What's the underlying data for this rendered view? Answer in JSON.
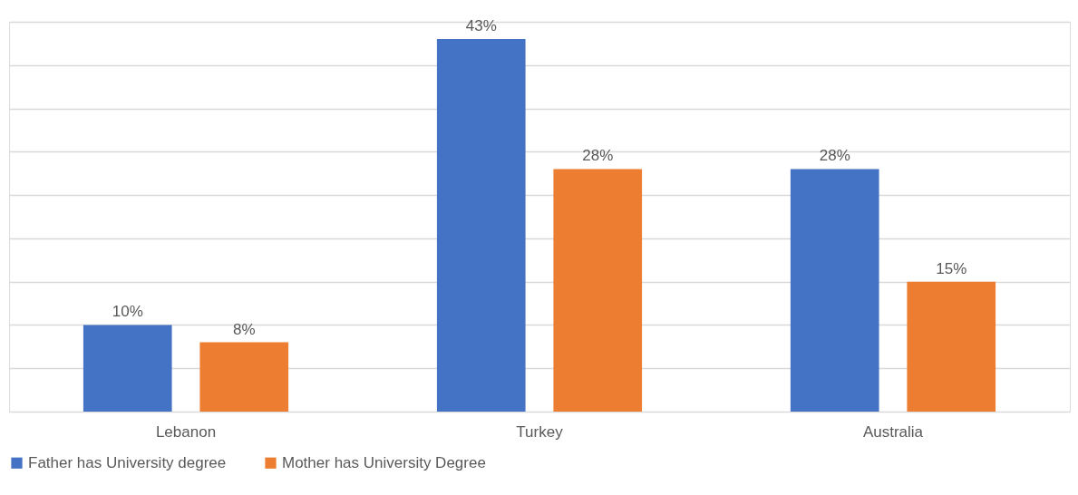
{
  "chart_data": {
    "type": "bar",
    "categories": [
      "Lebanon",
      "Turkey",
      "Australia"
    ],
    "series": [
      {
        "name": "Father has University degree",
        "color": "#4472c4",
        "values": [
          10,
          43,
          28
        ],
        "value_labels": [
          "10%",
          "43%",
          "28%"
        ]
      },
      {
        "name": "Mother has University Degree",
        "color": "#ed7d31",
        "values": [
          8,
          28,
          15
        ],
        "value_labels": [
          "8%",
          "28%",
          "15%"
        ]
      }
    ],
    "ylim": [
      0,
      45
    ],
    "yticks": [
      {
        "value": 0,
        "label": null
      },
      {
        "value": 5,
        "label": null
      },
      {
        "value": 10,
        "label": null
      },
      {
        "value": 15,
        "label": null
      },
      {
        "value": 20,
        "label": null
      },
      {
        "value": 25,
        "label": null
      },
      {
        "value": 30,
        "label": null
      },
      {
        "value": 35,
        "label": null
      },
      {
        "value": 40,
        "label": null
      },
      {
        "value": 45,
        "label": null
      }
    ],
    "grid": "y",
    "legend": "bottom",
    "tick_labels": "x"
  }
}
